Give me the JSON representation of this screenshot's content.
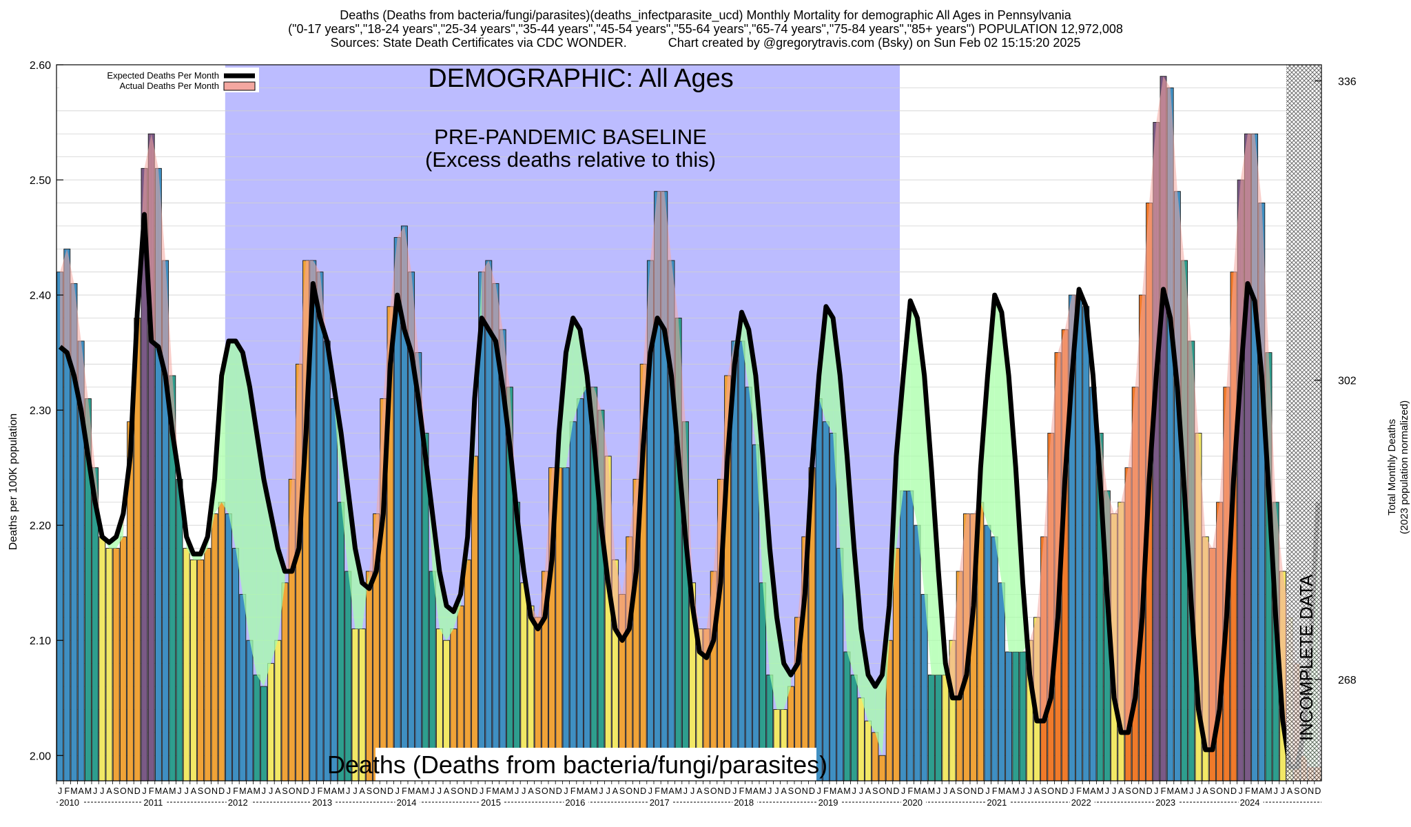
{
  "header": {
    "line1": "Deaths (Deaths from bacteria/fungi/parasites)(deaths_infectparasite_ucd) Monthly Mortality for demographic All Ages in Pennsylvania",
    "line2": "(\"0-17 years\",\"18-24 years\",\"25-34 years\",\"35-44 years\",\"45-54 years\",\"55-64 years\",\"65-74 years\",\"75-84 years\",\"85+ years\") POPULATION 12,972,008",
    "line3": "Sources: State Death Certificates via CDC WONDER.            Chart created by @gregorytravis.com (Bsky) on Sun Feb 02 15:15:20 2025"
  },
  "chart_data": {
    "type": "bar",
    "y_label_left": "Deaths per 100K population",
    "y_label_right": [
      "Total Monthly Deaths",
      "(2023 population normalized)"
    ],
    "ylim": [
      1.978,
      2.6
    ],
    "y_ticks": [
      "2.00",
      "2.10",
      "2.20",
      "2.30",
      "2.40",
      "2.50",
      "2.60"
    ],
    "y_ticks_right": [
      "268",
      "302",
      "336"
    ],
    "y_ticks_right_values": [
      2.066,
      2.326,
      2.586
    ],
    "grid": true,
    "legend_position": "top-left",
    "legend": [
      {
        "label": "Expected Deaths Per Month",
        "color": "#000000"
      },
      {
        "label": "Actual Deaths Per Month",
        "color": "#f4a7a0"
      }
    ],
    "overlay_title": "DEMOGRAPHIC: All Ages",
    "baseline_label_1": "PRE-PANDEMIC BASELINE",
    "baseline_label_2": "(Excess deaths relative to this)",
    "baseline_region": {
      "start": "2012-01",
      "end": "2019-12"
    },
    "bottom_label": "Deaths (Deaths from bacteria/fungi/parasites)",
    "incomplete_label": "INCOMPLETE DATA",
    "incomplete_from_month_index": 175,
    "month_letters": [
      "J",
      "F",
      "M",
      "A",
      "M",
      "J",
      "J",
      "A",
      "S",
      "O",
      "N",
      "D"
    ],
    "years": [
      "2010",
      "2011",
      "2012",
      "2013",
      "2014",
      "2015",
      "2016",
      "2017",
      "2018",
      "2019",
      "2020",
      "2021",
      "2022",
      "2023",
      "2024"
    ],
    "actual": [
      2.42,
      2.44,
      2.41,
      2.36,
      2.31,
      2.25,
      2.19,
      2.18,
      2.18,
      2.19,
      2.29,
      2.38,
      2.51,
      2.54,
      2.51,
      2.43,
      2.33,
      2.24,
      2.18,
      2.17,
      2.17,
      2.18,
      2.21,
      2.22,
      2.21,
      2.18,
      2.14,
      2.1,
      2.07,
      2.06,
      2.08,
      2.1,
      2.15,
      2.24,
      2.34,
      2.43,
      2.43,
      2.42,
      2.36,
      2.31,
      2.22,
      2.16,
      2.11,
      2.11,
      2.16,
      2.21,
      2.31,
      2.39,
      2.45,
      2.46,
      2.42,
      2.35,
      2.28,
      2.16,
      2.11,
      2.1,
      2.11,
      2.13,
      2.17,
      2.26,
      2.42,
      2.43,
      2.41,
      2.37,
      2.32,
      2.22,
      2.15,
      2.13,
      2.12,
      2.16,
      2.25,
      2.25,
      2.25,
      2.29,
      2.31,
      2.32,
      2.32,
      2.3,
      2.26,
      2.17,
      2.14,
      2.19,
      2.24,
      2.34,
      2.43,
      2.49,
      2.49,
      2.43,
      2.38,
      2.29,
      2.15,
      2.11,
      2.11,
      2.16,
      2.24,
      2.33,
      2.36,
      2.36,
      2.32,
      2.27,
      2.15,
      2.07,
      2.04,
      2.04,
      2.06,
      2.12,
      2.19,
      2.25,
      2.31,
      2.29,
      2.28,
      2.18,
      2.09,
      2.07,
      2.05,
      2.03,
      2.02,
      2.0,
      2.1,
      2.18,
      2.23,
      2.23,
      2.2,
      2.14,
      2.07,
      2.07,
      2.07,
      2.1,
      2.16,
      2.21,
      2.21,
      2.22,
      2.2,
      2.19,
      2.15,
      2.09,
      2.09,
      2.09,
      2.1,
      2.12,
      2.19,
      2.28,
      2.35,
      2.37,
      2.4,
      2.4,
      2.39,
      2.32,
      2.28,
      2.23,
      2.21,
      2.22,
      2.25,
      2.32,
      2.4,
      2.48,
      2.55,
      2.59,
      2.58,
      2.49,
      2.43,
      2.36,
      2.28,
      2.19,
      2.18,
      2.22,
      2.32,
      2.42,
      2.5,
      2.54,
      2.54,
      2.48,
      2.35,
      2.22,
      2.16,
      2.12,
      2.08,
      2.0,
      1.99,
      1.99
    ],
    "expected": [
      2.355,
      2.35,
      2.33,
      2.3,
      2.26,
      2.22,
      2.19,
      2.185,
      2.19,
      2.21,
      2.26,
      2.385,
      2.47,
      2.36,
      2.355,
      2.33,
      2.28,
      2.24,
      2.19,
      2.175,
      2.175,
      2.19,
      2.24,
      2.33,
      2.36,
      2.36,
      2.35,
      2.32,
      2.28,
      2.24,
      2.21,
      2.18,
      2.16,
      2.16,
      2.18,
      2.28,
      2.41,
      2.38,
      2.36,
      2.32,
      2.28,
      2.23,
      2.18,
      2.15,
      2.145,
      2.16,
      2.21,
      2.34,
      2.4,
      2.37,
      2.35,
      2.31,
      2.26,
      2.21,
      2.16,
      2.13,
      2.125,
      2.14,
      2.19,
      2.31,
      2.38,
      2.37,
      2.36,
      2.32,
      2.27,
      2.21,
      2.16,
      2.12,
      2.11,
      2.12,
      2.17,
      2.28,
      2.35,
      2.38,
      2.37,
      2.33,
      2.27,
      2.2,
      2.15,
      2.11,
      2.1,
      2.11,
      2.16,
      2.27,
      2.35,
      2.38,
      2.37,
      2.33,
      2.26,
      2.19,
      2.13,
      2.09,
      2.085,
      2.1,
      2.15,
      2.26,
      2.34,
      2.385,
      2.37,
      2.33,
      2.26,
      2.18,
      2.12,
      2.08,
      2.07,
      2.08,
      2.14,
      2.25,
      2.33,
      2.39,
      2.38,
      2.33,
      2.26,
      2.18,
      2.11,
      2.07,
      2.06,
      2.07,
      2.13,
      2.26,
      2.33,
      2.395,
      2.38,
      2.33,
      2.25,
      2.16,
      2.08,
      2.05,
      2.05,
      2.07,
      2.13,
      2.25,
      2.33,
      2.4,
      2.385,
      2.33,
      2.25,
      2.15,
      2.07,
      2.03,
      2.03,
      2.05,
      2.12,
      2.24,
      2.33,
      2.405,
      2.39,
      2.33,
      2.24,
      2.14,
      2.05,
      2.02,
      2.02,
      2.05,
      2.12,
      2.24,
      2.33,
      2.405,
      2.38,
      2.32,
      2.23,
      2.13,
      2.04,
      2.005,
      2.005,
      2.04,
      2.12,
      2.24,
      2.33,
      2.41,
      2.395,
      2.33,
      2.23,
      2.12,
      2.03,
      1.99,
      1.99,
      2.02,
      2.1,
      2.22
    ],
    "colors": {
      "baseline_region": "#bcbcff",
      "excess_fill": "#a8ffa8",
      "deficit_fill": "#f4a7a0",
      "bar_blue": "#3f8fc2",
      "bar_teal": "#2e9e8e",
      "bar_yellow": "#f2e866",
      "bar_orange": "#f0a338",
      "bar_red_orange": "#f07a2a",
      "bar_purple": "#7a5a86",
      "incomplete_hatch": "#555555"
    }
  }
}
